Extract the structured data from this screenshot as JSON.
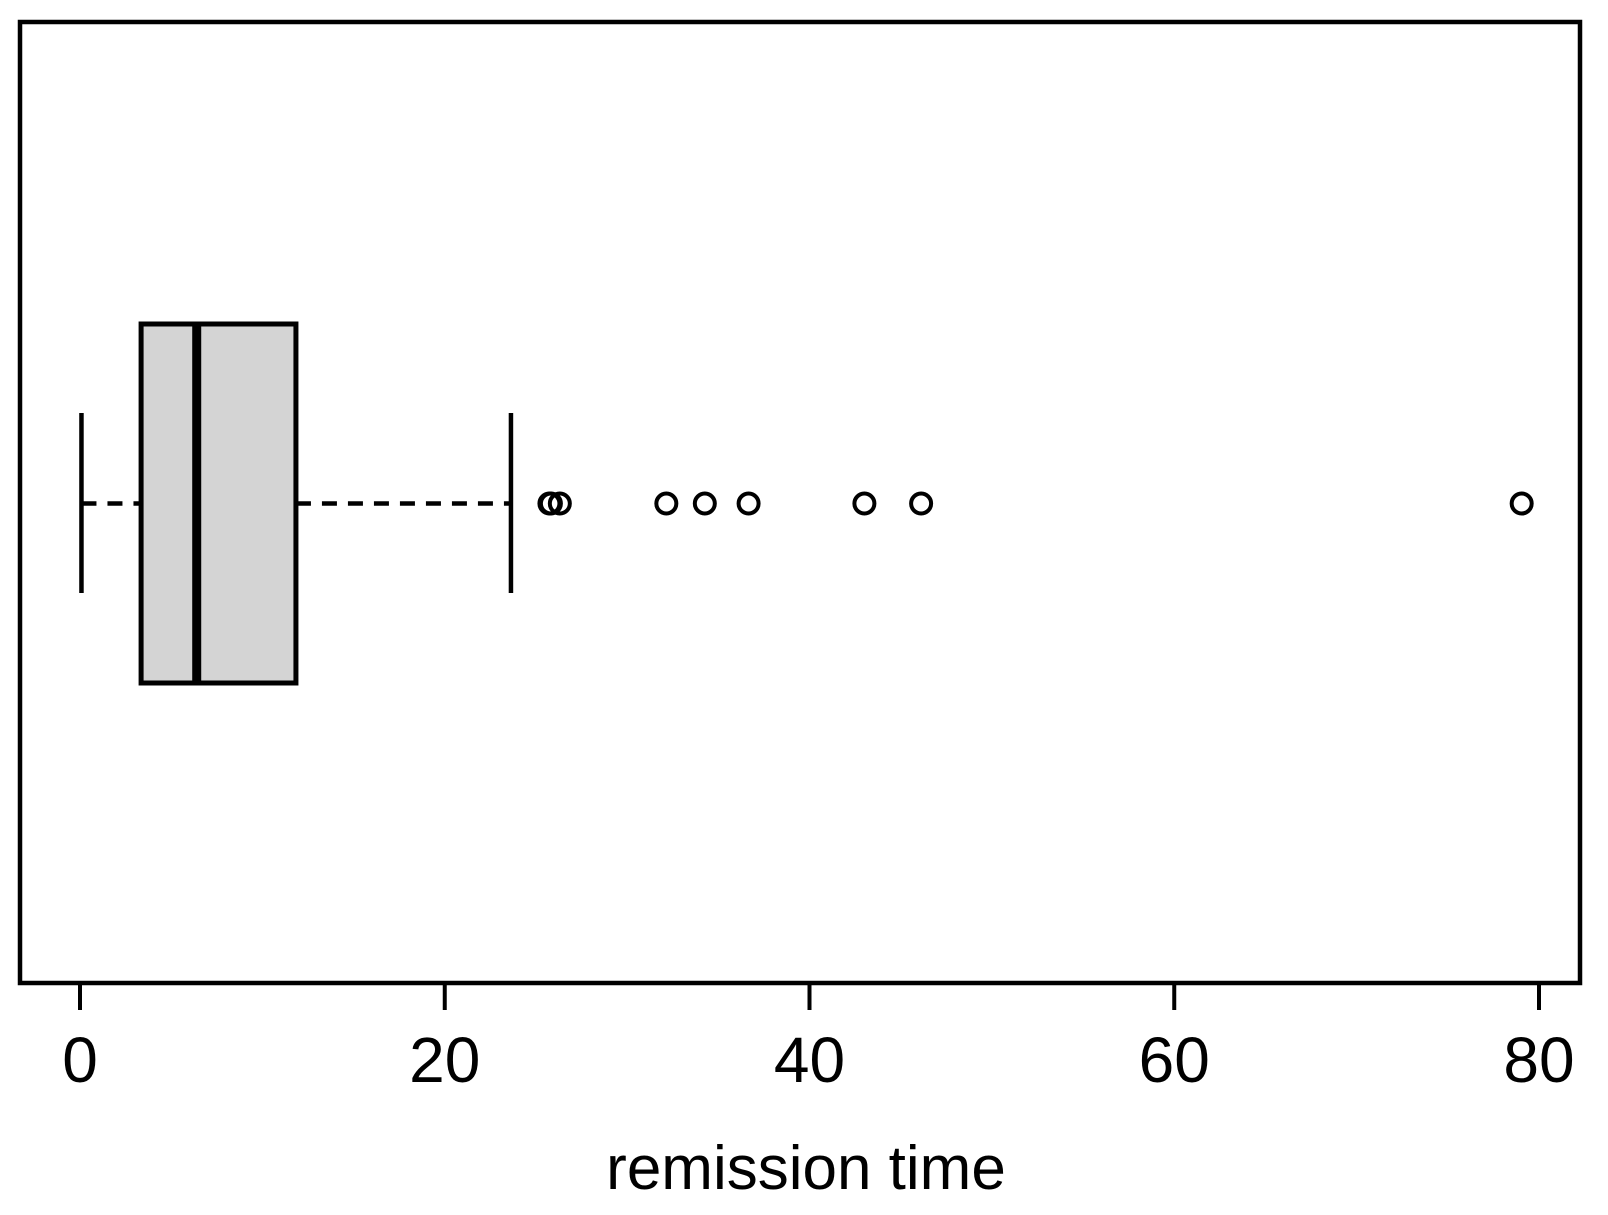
{
  "chart_data": {
    "type": "boxplot",
    "orientation": "horizontal",
    "title": "",
    "xlabel": "remission time",
    "ylabel": "",
    "x_ticks": [
      0,
      20,
      40,
      60,
      80
    ],
    "xlim": [
      -3.3,
      82.3
    ],
    "grid": false,
    "legend": false,
    "series": [
      {
        "name": "remission time",
        "whisker_low": 0.08,
        "q1": 3.35,
        "median": 6.4,
        "q3": 11.84,
        "whisker_high": 23.63,
        "outliers": [
          25.74,
          25.82,
          26.31,
          32.15,
          34.26,
          36.66,
          43.01,
          46.12,
          79.05
        ]
      }
    ],
    "colors": {
      "box_fill": "#d4d4d4",
      "line": "#000000",
      "background": "#ffffff",
      "outlier_fill": "none"
    }
  }
}
